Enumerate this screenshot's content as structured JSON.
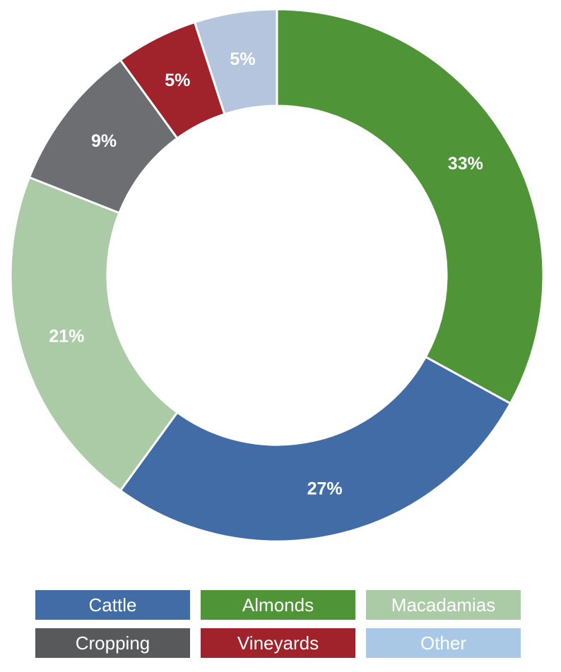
{
  "chart_data": {
    "type": "pie",
    "donut": true,
    "categories": [
      "Almonds",
      "Cattle",
      "Macadamias",
      "Cropping",
      "Vineyards",
      "Other"
    ],
    "values": [
      33,
      27,
      21,
      9,
      5,
      5
    ],
    "labels": [
      "33%",
      "27%",
      "21%",
      "9%",
      "5%",
      "5%"
    ],
    "colors": [
      "#4f9437",
      "#426ca5",
      "#abcba7",
      "#6d6e71",
      "#a0222a",
      "#b5c5de"
    ],
    "start_angle_deg": 0,
    "direction": "clockwise",
    "legend_position": "bottom"
  },
  "legend": {
    "items": [
      {
        "label": "Cattle",
        "color": "#426ca5"
      },
      {
        "label": "Almonds",
        "color": "#4f9437"
      },
      {
        "label": "Macadamias",
        "color": "#abcba7"
      },
      {
        "label": "Cropping",
        "color": "#58595b"
      },
      {
        "label": "Vineyards",
        "color": "#a0222a"
      },
      {
        "label": "Other",
        "color": "#a9c8e6"
      }
    ]
  }
}
